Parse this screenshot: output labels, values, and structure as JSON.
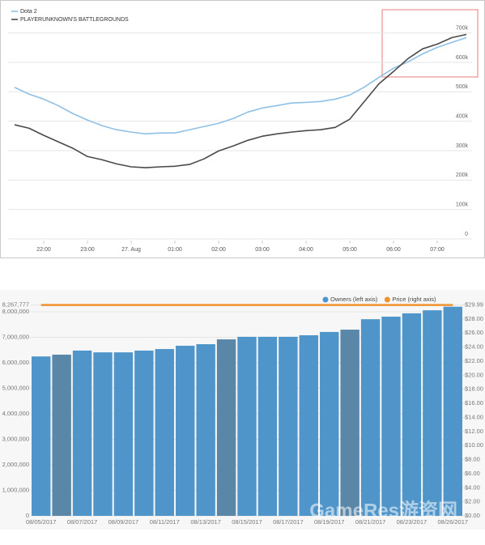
{
  "chart_data": [
    {
      "type": "line",
      "categories": [
        null,
        null,
        "22:00",
        null,
        null,
        "23:00",
        null,
        null,
        "27. Aug",
        null,
        null,
        "01:00",
        null,
        null,
        "02:00",
        null,
        null,
        "03:00",
        null,
        null,
        "04:00",
        null,
        null,
        "05:00",
        null,
        null,
        "06:00",
        null,
        null,
        "07:00",
        null,
        null
      ],
      "series": [
        {
          "name": "Dota 2",
          "color": "#8fc0e6",
          "values": [
            515000,
            492000,
            475000,
            453000,
            426000,
            404000,
            385000,
            371000,
            363000,
            357000,
            360000,
            360000,
            371000,
            382000,
            393000,
            409000,
            431000,
            445000,
            453000,
            462000,
            464000,
            467000,
            475000,
            489000,
            516000,
            549000,
            580000,
            602000,
            629000,
            651000,
            668000,
            684000
          ]
        },
        {
          "name": "PLAYERUNKNOWN'S BATTLEGROUNDS",
          "color": "#4a4a4a",
          "values": [
            388000,
            376000,
            352000,
            330000,
            308000,
            280000,
            269000,
            255000,
            245000,
            242000,
            245000,
            247000,
            253000,
            272000,
            299000,
            316000,
            335000,
            349000,
            357000,
            363000,
            368000,
            371000,
            379000,
            407000,
            467000,
            527000,
            569000,
            613000,
            646000,
            662000,
            684000,
            695000
          ]
        }
      ],
      "ylim": [
        0,
        790000
      ],
      "yticks": [
        0,
        {
          "value": 100000,
          "label": "100k"
        },
        {
          "value": 200000,
          "label": "200k"
        },
        {
          "value": 300000,
          "label": "300k"
        },
        {
          "value": 400000,
          "label": "400k"
        },
        {
          "value": 500000,
          "label": "500k"
        },
        {
          "value": 600000,
          "label": "600k"
        },
        {
          "value": 700000,
          "label": "700k"
        }
      ],
      "grid": true,
      "legend": "top-left"
    },
    {
      "type": "bar",
      "categories": [
        "08/05/2017",
        null,
        "08/07/2017",
        null,
        "08/09/2017",
        null,
        "08/11/2017",
        null,
        "08/13/2017",
        null,
        "08/15/2017",
        null,
        "08/17/2017",
        null,
        "08/19/2017",
        null,
        "08/21/2017",
        null,
        "08/23/2017",
        null,
        "08/26/2017"
      ],
      "series": [
        {
          "name": "Owners (left axis)",
          "color": "#4f95c9",
          "colors": [
            "#4f95c9",
            "#5a86a8",
            "#4f95c9",
            "#4f95c9",
            "#4f95c9",
            "#4f95c9",
            "#4f95c9",
            "#4f95c9",
            "#4f95c9",
            "#5a86a8",
            "#4f95c9",
            "#4f95c9",
            "#4f95c9",
            "#4f95c9",
            "#4f95c9",
            "#5a86a8",
            "#4f95c9",
            "#4f95c9",
            "#4f95c9",
            "#4f95c9",
            "#4f95c9"
          ],
          "values": [
            6250000,
            6320000,
            6480000,
            6410000,
            6410000,
            6480000,
            6540000,
            6670000,
            6730000,
            6920000,
            7020000,
            7020000,
            7020000,
            7080000,
            7210000,
            7300000,
            7710000,
            7810000,
            7940000,
            8060000,
            8200000
          ]
        },
        {
          "name": "Price (right axis)",
          "color": "#f0922e",
          "axis": "y2",
          "values": [
            29.99,
            29.99,
            29.99,
            29.99,
            29.99,
            29.99,
            29.99,
            29.99,
            29.99,
            29.99,
            29.99,
            29.99,
            29.99,
            29.99,
            29.99,
            29.99,
            29.99,
            29.99,
            29.99,
            29.99,
            29.99
          ]
        }
      ],
      "ylim": [
        0,
        8267777
      ],
      "yticks": [
        0,
        {
          "value": 1000000,
          "label": "1,000,000"
        },
        {
          "value": 2000000,
          "label": "2,000,000"
        },
        {
          "value": 3000000,
          "label": "3,000,000"
        },
        {
          "value": 4000000,
          "label": "4,000,000"
        },
        {
          "value": 5000000,
          "label": "5,000,000"
        },
        {
          "value": 6000000,
          "label": "6,000,000"
        },
        {
          "value": 7000000,
          "label": "7,000,000"
        },
        {
          "value": 8000000,
          "label": "8,000,000"
        },
        {
          "value": 8267777,
          "label": "8,267,777"
        }
      ],
      "y2lim": [
        0,
        29.99
      ],
      "y2ticks": [
        {
          "value": 0,
          "label": "$0.00"
        },
        {
          "value": 2,
          "label": "$2.00"
        },
        {
          "value": 4,
          "label": "$4.00"
        },
        {
          "value": 6,
          "label": "$6.00"
        },
        {
          "value": 8,
          "label": "$8.00"
        },
        {
          "value": 10,
          "label": "$10.00"
        },
        {
          "value": 12,
          "label": "$12.00"
        },
        {
          "value": 14,
          "label": "$14.00"
        },
        {
          "value": 16,
          "label": "$16.00"
        },
        {
          "value": 18,
          "label": "$18.00"
        },
        {
          "value": 20,
          "label": "$20.00"
        },
        {
          "value": 22,
          "label": "$22.00"
        },
        {
          "value": 24,
          "label": "$24.00"
        },
        {
          "value": 26,
          "label": "$26.00"
        },
        {
          "value": 28,
          "label": "$28.00"
        },
        {
          "value": 29.99,
          "label": "$29.99"
        }
      ],
      "grid": true,
      "legend": "top-right",
      "watermark": "GameRes游资网"
    }
  ]
}
